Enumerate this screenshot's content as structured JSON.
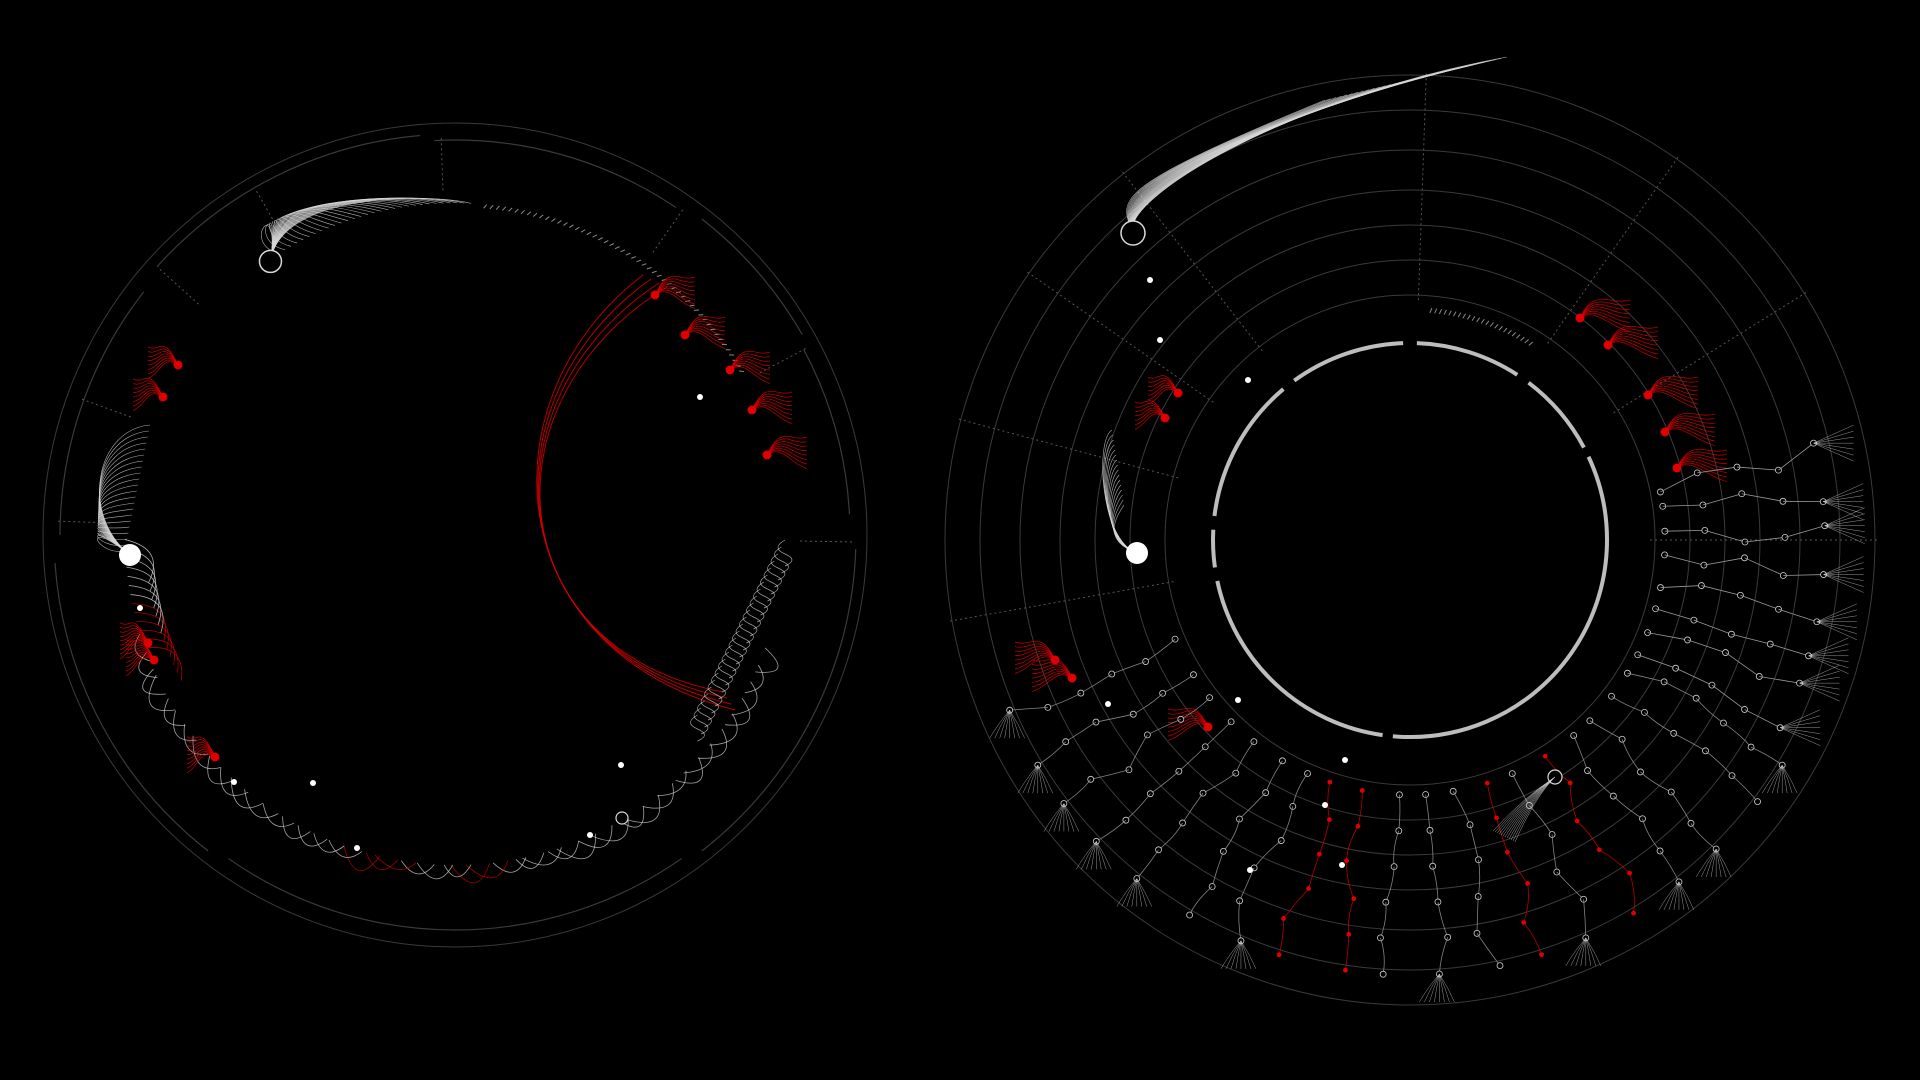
{
  "colors": {
    "background": "#000000",
    "guide": "#3a3a3a",
    "tick": "#8a8a8a",
    "link_white": "#d8d8d8",
    "link_red": "#d50000",
    "node_white": "#ffffff",
    "node_red": "#e00000",
    "inner_ring": "#bdbdbd"
  },
  "diagrams": [
    {
      "name": "left-radial-arc-diagram",
      "sectors": 8,
      "hub_nodes": [
        "white",
        "white",
        "white"
      ],
      "red_clusters": 4,
      "long_red_links": 3
    },
    {
      "name": "right-radial-tree-diagram",
      "sectors": 8,
      "concentric_levels": 7,
      "inner_ring_segments": 6,
      "hub_nodes": [
        "white",
        "white",
        "white"
      ],
      "red_clusters": 5
    }
  ]
}
